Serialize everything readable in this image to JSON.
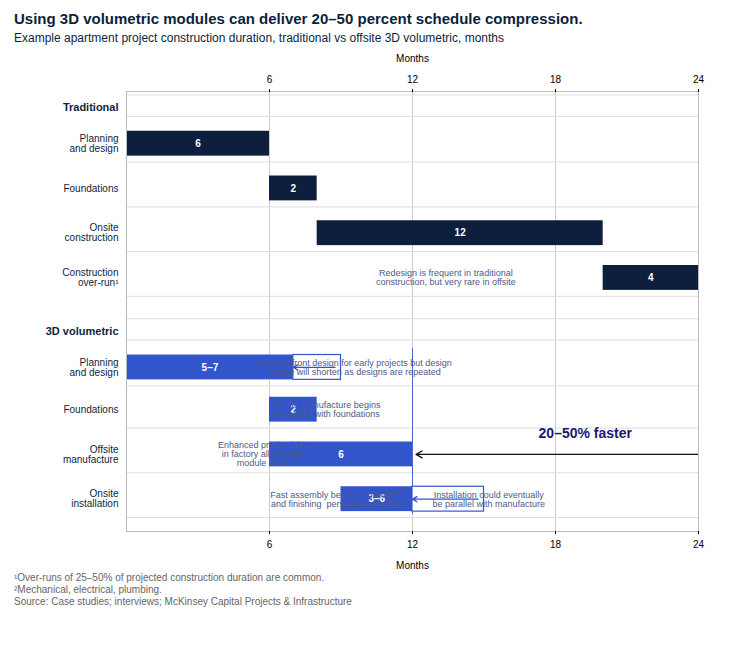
{
  "chart_data": {
    "type": "gantt",
    "orientation": "horizontal",
    "title": "Using 3D volumetric modules can deliver 20–50 percent schedule compression.",
    "subtitle": "Example apartment project construction duration, traditional vs offsite 3D volumetric, months",
    "xlabel": "Months",
    "x2label": "Months",
    "xlim": [
      0,
      24
    ],
    "xticks": [
      6,
      12,
      18,
      24
    ],
    "grid": true,
    "data_labels": true,
    "series": [
      {
        "name": "Traditional",
        "color": "#0d1f3c",
        "categories": [
          "Planning\nand design",
          "Foundations",
          "Onsite\nconstruction",
          "Construction\nover-run¹"
        ],
        "start": [
          0,
          6,
          8,
          20
        ],
        "values": [
          6,
          2,
          12,
          4
        ]
      },
      {
        "name": "3D volumetric",
        "color": "#3355cc",
        "categories": [
          "Planning\nand design",
          "Foundations",
          "Offsite\nmanufacture",
          "Onsite\ninstallation"
        ],
        "start": [
          0,
          6,
          6,
          9
        ],
        "values": [
          7,
          2,
          6,
          3
        ],
        "value_labels": [
          "5–7",
          "2",
          "6",
          "3–6"
        ],
        "extension_values": [
          2,
          null,
          null,
          3
        ]
      }
    ],
    "annotations": [
      "Redesign is frequent in traditional\nconstruction, but very rare in offsite",
      "More upfront design for early projects but design\nphase will shorten as designs are repeated",
      "Offsite manufacture begins\nin parallel with foundations",
      "Enhanced productivity\nin factory allows fast\nmodule build",
      "Fast assembly because no MEP²\nand finishing  personnel required",
      "Installation could eventually\nbe parallel with manufacture"
    ],
    "callout": "20–50% faster",
    "footnotes": [
      "¹Over-runs of 25–50% of projected construction duration are common.",
      "²Mechanical, electrical, plumbing."
    ],
    "source": "Source: Case studies; interviews; McKinsey Capital Projects & Infrastructure"
  }
}
